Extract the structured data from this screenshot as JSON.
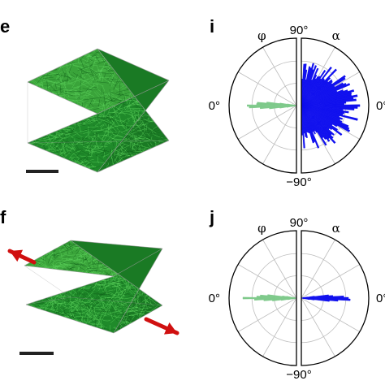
{
  "panels": [
    {
      "letter": "e",
      "type": "fiber-network-render",
      "fiber_color": "#2da82d",
      "scale_bar": true,
      "arrows": false
    },
    {
      "letter": "i",
      "type": "polar-histogram",
      "top_label": "90°",
      "bottom_label": "−90°",
      "left_label": "0°",
      "right_label": "0°",
      "left_symbol": "φ",
      "right_symbol": "α",
      "left_color": "#7ec98a",
      "right_color": "#1010ee",
      "left_distribution": "narrow",
      "right_distribution": "broad"
    },
    {
      "letter": "f",
      "type": "fiber-network-render",
      "fiber_color": "#2da82d",
      "scale_bar": true,
      "arrows": true,
      "arrow_color": "#d01010"
    },
    {
      "letter": "j",
      "type": "polar-histogram",
      "top_label": "90°",
      "bottom_label": "−90°",
      "left_label": "0°",
      "right_label": "0°",
      "left_symbol": "φ",
      "right_symbol": "α",
      "left_color": "#7ec98a",
      "right_color": "#1010ee",
      "left_distribution": "narrow",
      "right_distribution": "narrow"
    }
  ]
}
